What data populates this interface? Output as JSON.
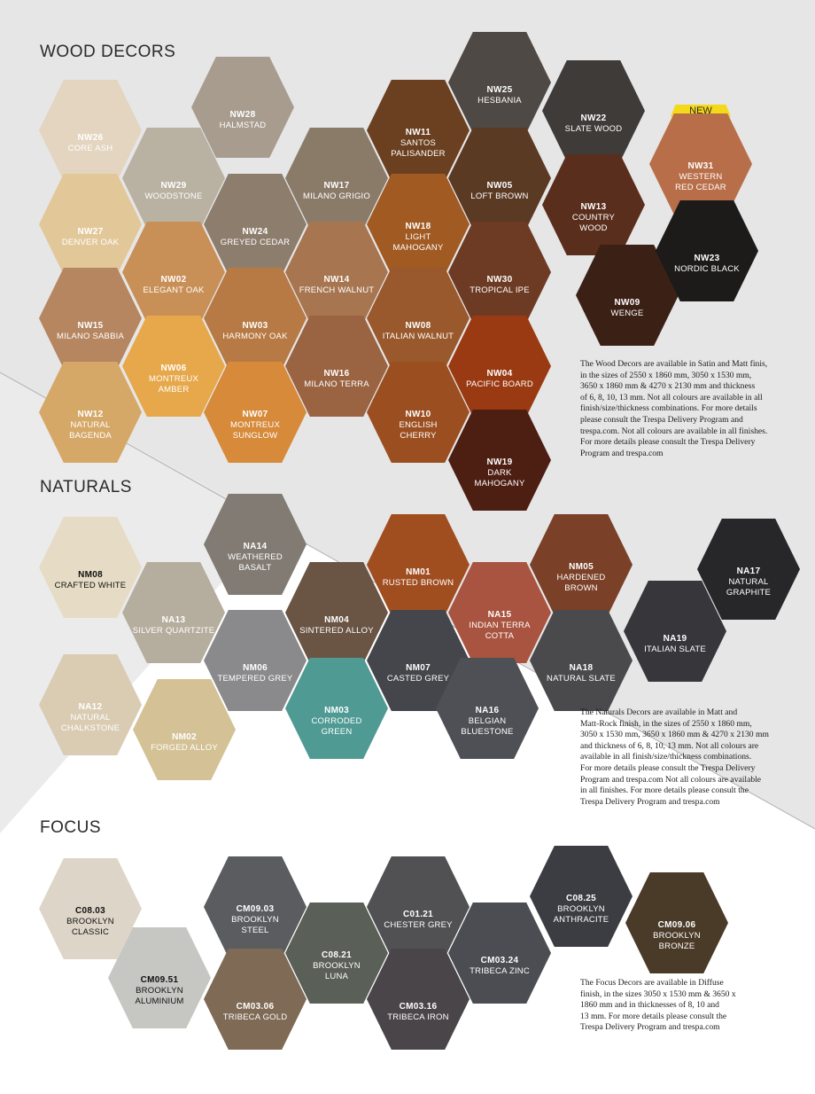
{
  "sections": {
    "wood": {
      "title": "WOOD DECORS",
      "new_badge": "NEW",
      "description": "The Wood Decors are available in Satin and Matt finis,\nin the sizes of 2550 x 1860 mm, 3050 x 1530 mm,\n3650 x 1860 mm & 4270 x 2130 mm and thickness\nof 6, 8, 10, 13 mm. Not all colours are available in all\nfinish/size/thickness combinations. For more details\nplease consult the Trespa Delivery Program and\ntrespa.com. Not all colours are available in all finishes.\nFor more details please consult the Trespa Delivery\nProgram and trespa.com",
      "swatches": [
        {
          "code": "NW26",
          "name": "CORE ASH",
          "color": "#e3d5bf"
        },
        {
          "code": "NW27",
          "name": "DENVER OAK",
          "color": "#e2c899"
        },
        {
          "code": "NW15",
          "name": "MILANO SABBIA",
          "color": "#b58660"
        },
        {
          "code": "NW12",
          "name": "NATURAL\nBAGENDA",
          "color": "#d6a868"
        },
        {
          "code": "NW28",
          "name": "HALMSTAD",
          "color": "#a79c8e"
        },
        {
          "code": "NW29",
          "name": "WOODSTONE",
          "color": "#b9b1a2"
        },
        {
          "code": "NW02",
          "name": "ELEGANT OAK",
          "color": "#c89056"
        },
        {
          "code": "NW06",
          "name": "MONTREUX\nAMBER",
          "color": "#e6a84a"
        },
        {
          "code": "NW24",
          "name": "GREYED CEDAR",
          "color": "#8d7d6c"
        },
        {
          "code": "NW03",
          "name": "HARMONY OAK",
          "color": "#b77a44"
        },
        {
          "code": "NW07",
          "name": "MONTREUX\nSUNGLOW",
          "color": "#d68a3a"
        },
        {
          "code": "NW17",
          "name": "MILANO GRIGIO",
          "color": "#8a7b69"
        },
        {
          "code": "NW14",
          "name": "FRENCH WALNUT",
          "color": "#a77650"
        },
        {
          "code": "NW16",
          "name": "MILANO TERRA",
          "color": "#9a6442"
        },
        {
          "code": "NW11",
          "name": "SANTOS\nPALISANDER",
          "color": "#6b4020"
        },
        {
          "code": "NW18",
          "name": "LIGHT\nMAHOGANY",
          "color": "#a05a22"
        },
        {
          "code": "NW08",
          "name": "ITALIAN WALNUT",
          "color": "#99592c"
        },
        {
          "code": "NW10",
          "name": "ENGLISH\nCHERRY",
          "color": "#9b4f21"
        },
        {
          "code": "NW25",
          "name": "HESBANIA",
          "color": "#4e4944"
        },
        {
          "code": "NW05",
          "name": "LOFT BROWN",
          "color": "#5b3a24"
        },
        {
          "code": "NW30",
          "name": "TROPICAL IPE",
          "color": "#6d3b23"
        },
        {
          "code": "NW04",
          "name": "PACIFIC BOARD",
          "color": "#9a3a12"
        },
        {
          "code": "NW19",
          "name": "DARK\nMAHOGANY",
          "color": "#4d1e12"
        },
        {
          "code": "NW22",
          "name": "SLATE WOOD",
          "color": "#3f3b38"
        },
        {
          "code": "NW13",
          "name": "COUNTRY\nWOOD",
          "color": "#5a2e1c"
        },
        {
          "code": "NW09",
          "name": "WENGE",
          "color": "#3b2015"
        },
        {
          "code": "NW31",
          "name": "WESTERN\nRED CEDAR",
          "color": "#b86e49"
        },
        {
          "code": "NW23",
          "name": "NORDIC BLACK",
          "color": "#1d1b1a"
        }
      ]
    },
    "naturals": {
      "title": "NATURALS",
      "description": "The Naturals Decors are available in Matt and\nMatt-Rock finish, in the sizes of 2550 x 1860 mm,\n3050 x 1530 mm, 3650 x 1860 mm & 4270 x 2130 mm\nand thickness of 6, 8, 10, 13 mm. Not all colours are\navailable in all finish/size/thickness combinations.\nFor more details please consult the Trespa Delivery\nProgram and trespa.com Not all colours are available\nin all finishes. For more details please consult the\nTrespa Delivery Program and trespa.com",
      "swatches": [
        {
          "code": "NM08",
          "name": "CRAFTED WHITE",
          "color": "#e6dcc6",
          "dark": true
        },
        {
          "code": "NA12",
          "name": "NATURAL\nCHALKSTONE",
          "color": "#d9ccb3"
        },
        {
          "code": "NA13",
          "name": "SILVER QUARTZITE",
          "color": "#b5ad9d"
        },
        {
          "code": "NM02",
          "name": "FORGED ALLOY",
          "color": "#d4c296"
        },
        {
          "code": "NA14",
          "name": "WEATHERED\nBASALT",
          "color": "#827b73"
        },
        {
          "code": "NM06",
          "name": "TEMPERED GREY",
          "color": "#8a8a8c"
        },
        {
          "code": "NM04",
          "name": "SINTERED ALLOY",
          "color": "#6a5444"
        },
        {
          "code": "NM03",
          "name": "CORRODED\nGREEN",
          "color": "#4f9a93"
        },
        {
          "code": "NM01",
          "name": "RUSTED BROWN",
          "color": "#a04e20"
        },
        {
          "code": "NM07",
          "name": "CASTED GREY",
          "color": "#45464b"
        },
        {
          "code": "NA15",
          "name": "INDIAN TERRA\nCOTTA",
          "color": "#a95440"
        },
        {
          "code": "NA16",
          "name": "BELGIAN\nBLUESTONE",
          "color": "#4e5055"
        },
        {
          "code": "NM05",
          "name": "HARDENED\nBROWN",
          "color": "#7a4028"
        },
        {
          "code": "NA18",
          "name": "NATURAL SLATE",
          "color": "#4a4a4d"
        },
        {
          "code": "NA19",
          "name": "ITALIAN SLATE",
          "color": "#37363a"
        },
        {
          "code": "NA17",
          "name": "NATURAL\nGRAPHITE",
          "color": "#27272a"
        }
      ]
    },
    "focus": {
      "title": "FOCUS",
      "description": "The Focus Decors are available in Diffuse\nfinish, in the sizes 3050 x 1530 mm & 3650 x\n1860 mm and in thicknesses of 8, 10 and\n13 mm. For more details please consult the\nTrespa Delivery Program and trespa.com",
      "swatches": [
        {
          "code": "C08.03",
          "name": "BROOKLYN\nCLASSIC",
          "color": "#ddd6c8",
          "dark": true
        },
        {
          "code": "CM09.51",
          "name": "BROOKLYN\nALUMINIUM",
          "color": "#c6c6c2",
          "dark": true
        },
        {
          "code": "CM09.03",
          "name": "BROOKLYN\nSTEEL",
          "color": "#5a5c60"
        },
        {
          "code": "CM03.06",
          "name": "TRIBECA GOLD",
          "color": "#7e6a55"
        },
        {
          "code": "C08.21",
          "name": "BROOKLYN\nLUNA",
          "color": "#5a5f57"
        },
        {
          "code": "C01.21",
          "name": "CHESTER GREY",
          "color": "#515153"
        },
        {
          "code": "CM03.16",
          "name": "TRIBECA IRON",
          "color": "#4a4549"
        },
        {
          "code": "CM03.24",
          "name": "TRIBECA ZINC",
          "color": "#4b4d52"
        },
        {
          "code": "C08.25",
          "name": "BROOKLYN\nANTHRACITE",
          "color": "#3b3d42"
        },
        {
          "code": "CM09.06",
          "name": "BROOKLYN\nBRONZE",
          "color": "#4a3a28"
        }
      ]
    }
  }
}
